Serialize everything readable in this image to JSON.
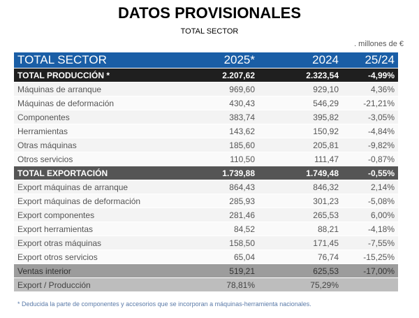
{
  "title": "DATOS PROVISIONALES",
  "subtitle": "TOTAL SECTOR",
  "units": ". millones de €",
  "table": {
    "header": [
      "TOTAL SECTOR",
      "2025*",
      "2024",
      "25/24"
    ],
    "rows": [
      {
        "type": "total",
        "cells": [
          "TOTAL PRODUCCIÓN *",
          "2.207,62",
          "2.323,54",
          "-4,99%"
        ]
      },
      {
        "type": "odd",
        "cells": [
          "Máquinas de arranque",
          "969,60",
          "929,10",
          "4,36%"
        ]
      },
      {
        "type": "even",
        "cells": [
          "Máquinas de deformación",
          "430,43",
          "546,29",
          "-21,21%"
        ]
      },
      {
        "type": "odd",
        "cells": [
          "Componentes",
          "383,74",
          "395,82",
          "-3,05%"
        ]
      },
      {
        "type": "even",
        "cells": [
          "Herramientas",
          "143,62",
          "150,92",
          "-4,84%"
        ]
      },
      {
        "type": "odd",
        "cells": [
          "Otras máquinas",
          "185,60",
          "205,81",
          "-9,82%"
        ]
      },
      {
        "type": "even",
        "cells": [
          "Otros servicios",
          "110,50",
          "111,47",
          "-0,87%"
        ]
      },
      {
        "type": "exptotal",
        "cells": [
          "TOTAL EXPORTACIÓN",
          "1.739,88",
          "1.749,48",
          "-0,55%"
        ]
      },
      {
        "type": "odd",
        "cells": [
          "Export máquinas de arranque",
          "864,43",
          "846,32",
          "2,14%"
        ]
      },
      {
        "type": "even",
        "cells": [
          "Export máquinas de deformación",
          "285,93",
          "301,23",
          "-5,08%"
        ]
      },
      {
        "type": "odd",
        "cells": [
          "Export componentes",
          "281,46",
          "265,53",
          "6,00%"
        ]
      },
      {
        "type": "even",
        "cells": [
          "Export herramientas",
          "84,52",
          "88,21",
          "-4,18%"
        ]
      },
      {
        "type": "odd",
        "cells": [
          "Export otras máquinas",
          "158,50",
          "171,45",
          "-7,55%"
        ]
      },
      {
        "type": "even",
        "cells": [
          "Export otros servicios",
          "65,04",
          "76,74",
          "-15,25%"
        ]
      },
      {
        "type": "ventas",
        "cells": [
          "Ventas interior",
          "519,21",
          "625,53",
          "-17,00%"
        ]
      },
      {
        "type": "ratio",
        "cells": [
          "Export / Producción",
          "78,81%",
          "75,29%",
          ""
        ]
      }
    ]
  },
  "footnote": "* Deducida la parte de componentes y accesorios que se incorporan a máquinas-herramienta nacionales.",
  "colors": {
    "header": "#1a5ea6",
    "total": "#1f1f1f",
    "export_total": "#555555",
    "footnote": "#5a7aa8"
  }
}
